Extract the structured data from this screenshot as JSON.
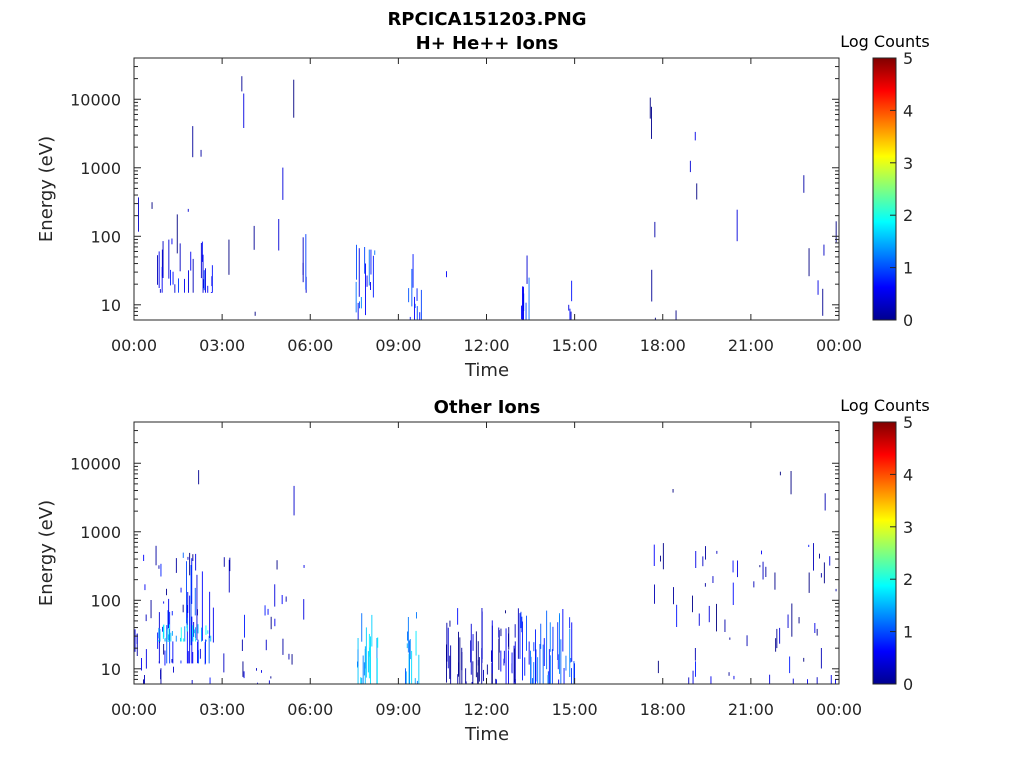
{
  "figure_title": "RPCICA151203.PNG",
  "colorbar_label": "Log Counts",
  "colorbar_ticks": [
    "0",
    "1",
    "2",
    "3",
    "4",
    "5"
  ],
  "colorbar_range": [
    0,
    5
  ],
  "colormap": "jet",
  "chart_data": [
    {
      "type": "heatmap",
      "title": "H+ He++ Ions",
      "xlabel": "Time",
      "ylabel": "Energy (eV)",
      "y_scale": "log",
      "ylim": [
        6,
        40000
      ],
      "xlim_hours": [
        0,
        24
      ],
      "x_tick_labels": [
        "00:00",
        "03:00",
        "06:00",
        "09:00",
        "12:00",
        "15:00",
        "18:00",
        "21:00",
        "00:00"
      ],
      "y_tick_values": [
        10,
        100,
        1000,
        10000
      ],
      "y_tick_labels": [
        "10",
        "100",
        "1000",
        "10000"
      ],
      "regions": [
        {
          "start_hour": 0.0,
          "end_hour": 6.0,
          "emin": 6,
          "emax": 30000,
          "log_counts": 0.15,
          "density": 0.1
        },
        {
          "start_hour": 0.8,
          "end_hour": 2.7,
          "emin": 15,
          "emax": 100,
          "log_counts": 0.6,
          "density": 0.55
        },
        {
          "start_hour": 5.6,
          "end_hour": 5.9,
          "emin": 15,
          "emax": 150,
          "log_counts": 0.6,
          "density": 0.6
        },
        {
          "start_hour": 7.5,
          "end_hour": 8.2,
          "emin": 6,
          "emax": 80,
          "log_counts": 0.9,
          "density": 0.85
        },
        {
          "start_hour": 9.3,
          "end_hour": 9.8,
          "emin": 6,
          "emax": 80,
          "log_counts": 0.9,
          "density": 0.8
        },
        {
          "start_hour": 10.6,
          "end_hour": 10.7,
          "emin": 6,
          "emax": 40,
          "log_counts": 0.8,
          "density": 0.7
        },
        {
          "start_hour": 13.1,
          "end_hour": 13.5,
          "emin": 6,
          "emax": 80,
          "log_counts": 0.8,
          "density": 0.8
        },
        {
          "start_hour": 14.7,
          "end_hour": 15.0,
          "emin": 6,
          "emax": 30,
          "log_counts": 0.6,
          "density": 0.6
        },
        {
          "start_hour": 17.5,
          "end_hour": 24.0,
          "emin": 6,
          "emax": 20000,
          "log_counts": 0.15,
          "density": 0.1
        }
      ]
    },
    {
      "type": "heatmap",
      "title": "Other Ions",
      "xlabel": "Time",
      "ylabel": "Energy (eV)",
      "y_scale": "log",
      "ylim": [
        6,
        40000
      ],
      "xlim_hours": [
        0,
        24
      ],
      "x_tick_labels": [
        "00:00",
        "03:00",
        "06:00",
        "09:00",
        "12:00",
        "15:00",
        "18:00",
        "21:00",
        "00:00"
      ],
      "y_tick_values": [
        10,
        100,
        1000,
        10000
      ],
      "y_tick_labels": [
        "10",
        "100",
        "1000",
        "10000"
      ],
      "regions": [
        {
          "start_hour": 0.0,
          "end_hour": 6.0,
          "emin": 6,
          "emax": 12000,
          "log_counts": 0.1,
          "density": 0.06
        },
        {
          "start_hour": 0.0,
          "end_hour": 6.0,
          "emin": 6,
          "emax": 700,
          "log_counts": 0.4,
          "density": 0.4
        },
        {
          "start_hour": 0.7,
          "end_hour": 2.7,
          "emin": 12,
          "emax": 500,
          "log_counts": 0.8,
          "density": 0.6
        },
        {
          "start_hour": 0.8,
          "end_hour": 2.6,
          "emin": 25,
          "emax": 45,
          "log_counts": 1.6,
          "density": 0.75
        },
        {
          "start_hour": 7.5,
          "end_hour": 8.3,
          "emin": 6,
          "emax": 80,
          "log_counts": 1.5,
          "density": 0.95
        },
        {
          "start_hour": 9.2,
          "end_hour": 9.8,
          "emin": 6,
          "emax": 80,
          "log_counts": 1.4,
          "density": 0.95
        },
        {
          "start_hour": 10.6,
          "end_hour": 13.1,
          "emin": 6,
          "emax": 80,
          "log_counts": 0.3,
          "density": 0.95
        },
        {
          "start_hour": 13.1,
          "end_hour": 15.0,
          "emin": 6,
          "emax": 80,
          "log_counts": 0.9,
          "density": 0.95
        },
        {
          "start_hour": 17.5,
          "end_hour": 24.0,
          "emin": 6,
          "emax": 10000,
          "log_counts": 0.1,
          "density": 0.06
        },
        {
          "start_hour": 17.5,
          "end_hour": 24.0,
          "emin": 6,
          "emax": 700,
          "log_counts": 0.35,
          "density": 0.35
        }
      ]
    }
  ]
}
